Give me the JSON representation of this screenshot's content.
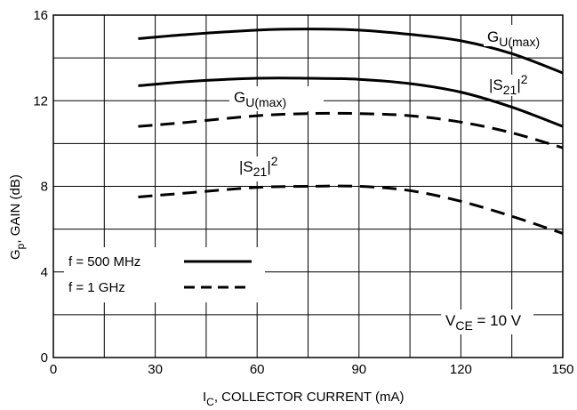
{
  "chart_data": {
    "type": "line",
    "xlabel_main": "I",
    "xlabel_sub": "C",
    "xlabel_rest": ", COLLECTOR CURRENT (mA)",
    "ylabel_main": "G",
    "ylabel_sub": "p",
    "ylabel_rest": ", GAIN (dB)",
    "xlim": [
      0,
      150
    ],
    "ylim": [
      0,
      16
    ],
    "x_ticks": [
      0,
      30,
      60,
      90,
      120,
      150
    ],
    "y_ticks": [
      0,
      4,
      8,
      12,
      16
    ],
    "grid": true,
    "series": [
      {
        "name": "G_U(max) f = 500 MHz",
        "dash": "solid",
        "x": [
          25,
          40,
          60,
          75,
          90,
          105,
          120,
          135,
          150
        ],
        "y": [
          14.9,
          15.1,
          15.3,
          15.35,
          15.3,
          15.1,
          14.8,
          14.2,
          13.3
        ]
      },
      {
        "name": "|S21|^2 f = 500 MHz",
        "dash": "solid",
        "x": [
          25,
          40,
          60,
          75,
          90,
          105,
          120,
          135,
          150
        ],
        "y": [
          12.7,
          12.9,
          13.05,
          13.05,
          13.0,
          12.8,
          12.4,
          11.7,
          10.8
        ]
      },
      {
        "name": "G_U(max) f = 1 GHz",
        "dash": "dashed",
        "x": [
          25,
          40,
          60,
          75,
          90,
          105,
          120,
          135,
          150
        ],
        "y": [
          10.8,
          11.0,
          11.3,
          11.4,
          11.4,
          11.3,
          11.0,
          10.5,
          9.8
        ]
      },
      {
        "name": "|S21|^2 f = 1 GHz",
        "dash": "dashed",
        "x": [
          25,
          40,
          60,
          75,
          90,
          105,
          120,
          135,
          150
        ],
        "y": [
          7.5,
          7.7,
          7.95,
          8.0,
          8.0,
          7.8,
          7.3,
          6.6,
          5.8
        ]
      }
    ],
    "annotations": {
      "gu_500": {
        "main": "G",
        "sub": "U(max)"
      },
      "s21_500": {
        "pre": "|S",
        "sub": "21",
        "post": "|",
        "sup": "2"
      },
      "gu_1g": {
        "main": "G",
        "sub": "U(max)"
      },
      "s21_1g": {
        "pre": "|S",
        "sub": "21",
        "post": "|",
        "sup": "2"
      },
      "vce": {
        "main": "V",
        "sub": "CE",
        "rest": " = 10 V"
      }
    },
    "legend": {
      "placement": "bottom-left",
      "entries": [
        {
          "label": "f = 500 MHz",
          "dash": "solid"
        },
        {
          "label": "f = 1 GHz",
          "dash": "dashed"
        }
      ]
    }
  }
}
